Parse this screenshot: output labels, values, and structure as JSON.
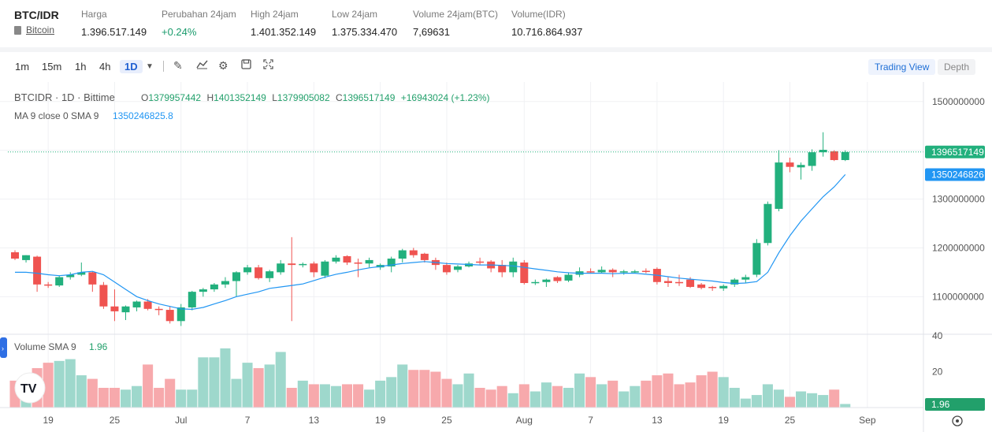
{
  "header": {
    "pair": "BTC/IDR",
    "coin_link": "Bitcoin",
    "stats": [
      {
        "label": "Harga",
        "value": "1.396.517.149",
        "positive": false
      },
      {
        "label": "Perubahan 24jam",
        "value": "+0.24%",
        "positive": true
      },
      {
        "label": "High 24jam",
        "value": "1.401.352.149",
        "positive": false
      },
      {
        "label": "Low 24jam",
        "value": "1.375.334.470",
        "positive": false
      },
      {
        "label": "Volume 24jam(BTC)",
        "value": "7,69631",
        "positive": false
      },
      {
        "label": "Volume(IDR)",
        "value": "10.716.864.937",
        "positive": false
      }
    ]
  },
  "toolbar": {
    "timeframes": [
      "1m",
      "15m",
      "1h",
      "4h",
      "1D"
    ],
    "active_timeframe": "1D",
    "dropdown_icon": "caret-down-icon",
    "tools": [
      "draw-icon",
      "indicators-icon",
      "settings-icon",
      "save-icon",
      "fullscreen-icon"
    ],
    "trading_view_label": "Trading View",
    "depth_label": "Depth"
  },
  "legend": {
    "symbol": "BTCIDR · 1D · Bittime",
    "o_label": "O",
    "o_value": "1379957442",
    "h_label": "H",
    "h_value": "1401352149",
    "l_label": "L",
    "l_value": "1379905082",
    "c_label": "C",
    "c_value": "1396517149",
    "change": "+16943024 (+1.23%)",
    "ma_label": "MA 9 close 0 SMA 9",
    "ma_value": "1350246825.8",
    "volume_label": "Volume SMA 9",
    "volume_value": "1.96"
  },
  "colors": {
    "up": "#26a69a",
    "up_bright": "#22b07d",
    "down": "#ef5350",
    "ma": "#2196f3",
    "vol_up": "#9ed8cc",
    "vol_down": "#f7a9ac",
    "price_tag": "#22b07d",
    "ma_tag": "#2196f3"
  },
  "chart_data": {
    "type": "candlestick",
    "title": "BTCIDR · 1D · Bittime",
    "price_axis": {
      "ticks": [
        1100000000,
        1200000000,
        1300000000,
        1400000000,
        1500000000
      ],
      "tick_labels": [
        "1100000000",
        "1200000000",
        "1300000000",
        "1400000000",
        "1500000000"
      ],
      "range": [
        1023000000,
        1540000000
      ]
    },
    "volume_axis": {
      "ticks": [
        20,
        40
      ],
      "tick_labels": [
        "20",
        "40"
      ],
      "range": [
        0,
        40
      ]
    },
    "x_tick_labels": [
      "19",
      "25",
      "Jul",
      "7",
      "13",
      "19",
      "25",
      "Aug",
      "7",
      "13",
      "19",
      "25",
      "Sep"
    ],
    "x_tick_days": [
      0,
      6,
      12,
      18,
      24,
      30,
      36,
      43,
      49,
      55,
      61,
      67,
      74
    ],
    "first_day_offset": -3,
    "last_price": 1396517149,
    "last_price_label": "1396517149",
    "ma_last": 1350246826,
    "ma_last_label": "1350246826",
    "volume_last_label": "1.96",
    "candles": [
      {
        "o": 1191000000,
        "h": 1195000000,
        "l": 1175000000,
        "c": 1178000000,
        "v": 15
      },
      {
        "o": 1175000000,
        "h": 1185000000,
        "l": 1170000000,
        "c": 1185000000,
        "v": 13
      },
      {
        "o": 1182000000,
        "h": 1184000000,
        "l": 1110000000,
        "c": 1125000000,
        "v": 22
      },
      {
        "o": 1125000000,
        "h": 1130000000,
        "l": 1118000000,
        "c": 1123000000,
        "v": 25
      },
      {
        "o": 1123000000,
        "h": 1143000000,
        "l": 1120000000,
        "c": 1140000000,
        "v": 26
      },
      {
        "o": 1140000000,
        "h": 1150000000,
        "l": 1135000000,
        "c": 1145000000,
        "v": 27
      },
      {
        "o": 1145000000,
        "h": 1170000000,
        "l": 1142000000,
        "c": 1150000000,
        "v": 18
      },
      {
        "o": 1150000000,
        "h": 1152000000,
        "l": 1110000000,
        "c": 1125000000,
        "v": 16
      },
      {
        "o": 1124000000,
        "h": 1130000000,
        "l": 1075000000,
        "c": 1080000000,
        "v": 11
      },
      {
        "o": 1080000000,
        "h": 1115000000,
        "l": 1050000000,
        "c": 1070000000,
        "v": 11
      },
      {
        "o": 1068000000,
        "h": 1082000000,
        "l": 1052000000,
        "c": 1080000000,
        "v": 10
      },
      {
        "o": 1078000000,
        "h": 1092000000,
        "l": 1070000000,
        "c": 1090000000,
        "v": 12
      },
      {
        "o": 1090000000,
        "h": 1095000000,
        "l": 1072000000,
        "c": 1075000000,
        "v": 24
      },
      {
        "o": 1075000000,
        "h": 1080000000,
        "l": 1062000000,
        "c": 1073000000,
        "v": 11
      },
      {
        "o": 1073000000,
        "h": 1080000000,
        "l": 1045000000,
        "c": 1050000000,
        "v": 16
      },
      {
        "o": 1050000000,
        "h": 1085000000,
        "l": 1040000000,
        "c": 1078000000,
        "v": 10
      },
      {
        "o": 1078000000,
        "h": 1112000000,
        "l": 1072000000,
        "c": 1110000000,
        "v": 10
      },
      {
        "o": 1110000000,
        "h": 1118000000,
        "l": 1100000000,
        "c": 1115000000,
        "v": 28
      },
      {
        "o": 1115000000,
        "h": 1128000000,
        "l": 1110000000,
        "c": 1125000000,
        "v": 28
      },
      {
        "o": 1125000000,
        "h": 1140000000,
        "l": 1118000000,
        "c": 1132000000,
        "v": 33
      },
      {
        "o": 1132000000,
        "h": 1152000000,
        "l": 1100000000,
        "c": 1150000000,
        "v": 16
      },
      {
        "o": 1150000000,
        "h": 1165000000,
        "l": 1145000000,
        "c": 1160000000,
        "v": 25
      },
      {
        "o": 1160000000,
        "h": 1165000000,
        "l": 1135000000,
        "c": 1138000000,
        "v": 22
      },
      {
        "o": 1138000000,
        "h": 1155000000,
        "l": 1130000000,
        "c": 1152000000,
        "v": 24
      },
      {
        "o": 1150000000,
        "h": 1175000000,
        "l": 1145000000,
        "c": 1168000000,
        "v": 31
      },
      {
        "o": 1168000000,
        "h": 1222000000,
        "l": 1050000000,
        "c": 1165000000,
        "v": 11
      },
      {
        "o": 1165000000,
        "h": 1170000000,
        "l": 1160000000,
        "c": 1167000000,
        "v": 15
      },
      {
        "o": 1168000000,
        "h": 1172000000,
        "l": 1140000000,
        "c": 1150000000,
        "v": 13
      },
      {
        "o": 1143000000,
        "h": 1175000000,
        "l": 1138000000,
        "c": 1172000000,
        "v": 13
      },
      {
        "o": 1172000000,
        "h": 1185000000,
        "l": 1168000000,
        "c": 1180000000,
        "v": 12
      },
      {
        "o": 1183000000,
        "h": 1185000000,
        "l": 1165000000,
        "c": 1170000000,
        "v": 13
      },
      {
        "o": 1170000000,
        "h": 1178000000,
        "l": 1140000000,
        "c": 1168000000,
        "v": 13
      },
      {
        "o": 1168000000,
        "h": 1180000000,
        "l": 1160000000,
        "c": 1175000000,
        "v": 10
      },
      {
        "o": 1160000000,
        "h": 1168000000,
        "l": 1155000000,
        "c": 1165000000,
        "v": 15
      },
      {
        "o": 1162000000,
        "h": 1182000000,
        "l": 1150000000,
        "c": 1178000000,
        "v": 17
      },
      {
        "o": 1178000000,
        "h": 1198000000,
        "l": 1170000000,
        "c": 1195000000,
        "v": 24
      },
      {
        "o": 1195000000,
        "h": 1200000000,
        "l": 1180000000,
        "c": 1185000000,
        "v": 21
      },
      {
        "o": 1188000000,
        "h": 1190000000,
        "l": 1170000000,
        "c": 1175000000,
        "v": 21
      },
      {
        "o": 1175000000,
        "h": 1180000000,
        "l": 1155000000,
        "c": 1165000000,
        "v": 20
      },
      {
        "o": 1165000000,
        "h": 1170000000,
        "l": 1145000000,
        "c": 1150000000,
        "v": 16
      },
      {
        "o": 1155000000,
        "h": 1165000000,
        "l": 1150000000,
        "c": 1162000000,
        "v": 13
      },
      {
        "o": 1162000000,
        "h": 1172000000,
        "l": 1160000000,
        "c": 1168000000,
        "v": 19
      },
      {
        "o": 1172000000,
        "h": 1180000000,
        "l": 1165000000,
        "c": 1170000000,
        "v": 11
      },
      {
        "o": 1172000000,
        "h": 1175000000,
        "l": 1150000000,
        "c": 1158000000,
        "v": 10
      },
      {
        "o": 1165000000,
        "h": 1175000000,
        "l": 1140000000,
        "c": 1150000000,
        "v": 12
      },
      {
        "o": 1150000000,
        "h": 1180000000,
        "l": 1140000000,
        "c": 1172000000,
        "v": 8
      },
      {
        "o": 1170000000,
        "h": 1175000000,
        "l": 1125000000,
        "c": 1128000000,
        "v": 13
      },
      {
        "o": 1128000000,
        "h": 1135000000,
        "l": 1124000000,
        "c": 1130000000,
        "v": 9
      },
      {
        "o": 1130000000,
        "h": 1137000000,
        "l": 1120000000,
        "c": 1135000000,
        "v": 14
      },
      {
        "o": 1140000000,
        "h": 1142000000,
        "l": 1128000000,
        "c": 1132000000,
        "v": 12
      },
      {
        "o": 1133000000,
        "h": 1150000000,
        "l": 1130000000,
        "c": 1145000000,
        "v": 11
      },
      {
        "o": 1145000000,
        "h": 1160000000,
        "l": 1140000000,
        "c": 1152000000,
        "v": 19
      },
      {
        "o": 1152000000,
        "h": 1158000000,
        "l": 1148000000,
        "c": 1150000000,
        "v": 17
      },
      {
        "o": 1150000000,
        "h": 1162000000,
        "l": 1148000000,
        "c": 1155000000,
        "v": 13
      },
      {
        "o": 1155000000,
        "h": 1158000000,
        "l": 1140000000,
        "c": 1150000000,
        "v": 15
      },
      {
        "o": 1150000000,
        "h": 1155000000,
        "l": 1145000000,
        "c": 1152000000,
        "v": 9
      },
      {
        "o": 1150000000,
        "h": 1155000000,
        "l": 1148000000,
        "c": 1152000000,
        "v": 12
      },
      {
        "o": 1153000000,
        "h": 1158000000,
        "l": 1148000000,
        "c": 1152000000,
        "v": 15
      },
      {
        "o": 1157000000,
        "h": 1160000000,
        "l": 1125000000,
        "c": 1130000000,
        "v": 18
      },
      {
        "o": 1132000000,
        "h": 1140000000,
        "l": 1120000000,
        "c": 1128000000,
        "v": 19
      },
      {
        "o": 1130000000,
        "h": 1145000000,
        "l": 1122000000,
        "c": 1128000000,
        "v": 13
      },
      {
        "o": 1135000000,
        "h": 1140000000,
        "l": 1118000000,
        "c": 1120000000,
        "v": 14
      },
      {
        "o": 1125000000,
        "h": 1128000000,
        "l": 1115000000,
        "c": 1118000000,
        "v": 18
      },
      {
        "o": 1120000000,
        "h": 1122000000,
        "l": 1112000000,
        "c": 1118000000,
        "v": 20
      },
      {
        "o": 1117000000,
        "h": 1125000000,
        "l": 1112000000,
        "c": 1122000000,
        "v": 17
      },
      {
        "o": 1125000000,
        "h": 1138000000,
        "l": 1120000000,
        "c": 1135000000,
        "v": 11
      },
      {
        "o": 1135000000,
        "h": 1145000000,
        "l": 1128000000,
        "c": 1140000000,
        "v": 5
      },
      {
        "o": 1145000000,
        "h": 1218000000,
        "l": 1140000000,
        "c": 1210000000,
        "v": 7
      },
      {
        "o": 1210000000,
        "h": 1295000000,
        "l": 1205000000,
        "c": 1290000000,
        "v": 13
      },
      {
        "o": 1280000000,
        "h": 1400000000,
        "l": 1275000000,
        "c": 1375000000,
        "v": 10
      },
      {
        "o": 1375000000,
        "h": 1385000000,
        "l": 1355000000,
        "c": 1366000000,
        "v": 6
      },
      {
        "o": 1365000000,
        "h": 1375000000,
        "l": 1340000000,
        "c": 1370000000,
        "v": 9
      },
      {
        "o": 1368000000,
        "h": 1402000000,
        "l": 1358000000,
        "c": 1396000000,
        "v": 8
      },
      {
        "o": 1396000000,
        "h": 1437000000,
        "l": 1387000000,
        "c": 1401000000,
        "v": 7
      },
      {
        "o": 1398000000,
        "h": 1400000000,
        "l": 1378000000,
        "c": 1380000000,
        "v": 10
      },
      {
        "o": 1380000000,
        "h": 1400000000,
        "l": 1378000000,
        "c": 1396517149,
        "v": 2
      }
    ],
    "ma": [
      1150000000,
      1150000000,
      1148000000,
      1145000000,
      1143000000,
      1145000000,
      1150000000,
      1152000000,
      1145000000,
      1130000000,
      1115000000,
      1100000000,
      1092000000,
      1085000000,
      1080000000,
      1075000000,
      1074000000,
      1078000000,
      1085000000,
      1092000000,
      1100000000,
      1105000000,
      1110000000,
      1117000000,
      1120000000,
      1123000000,
      1126000000,
      1133000000,
      1140000000,
      1146000000,
      1150000000,
      1155000000,
      1159000000,
      1162000000,
      1165000000,
      1168000000,
      1170000000,
      1172000000,
      1170000000,
      1168000000,
      1167000000,
      1166000000,
      1165000000,
      1165000000,
      1164000000,
      1163000000,
      1160000000,
      1157000000,
      1154000000,
      1151000000,
      1149000000,
      1148000000,
      1148000000,
      1148000000,
      1147000000,
      1148000000,
      1148000000,
      1146000000,
      1144000000,
      1141000000,
      1138000000,
      1136000000,
      1134000000,
      1132000000,
      1129000000,
      1127000000,
      1128000000,
      1131000000,
      1150000000,
      1190000000,
      1225000000,
      1255000000,
      1280000000,
      1305000000,
      1325000000,
      1350246826
    ]
  }
}
